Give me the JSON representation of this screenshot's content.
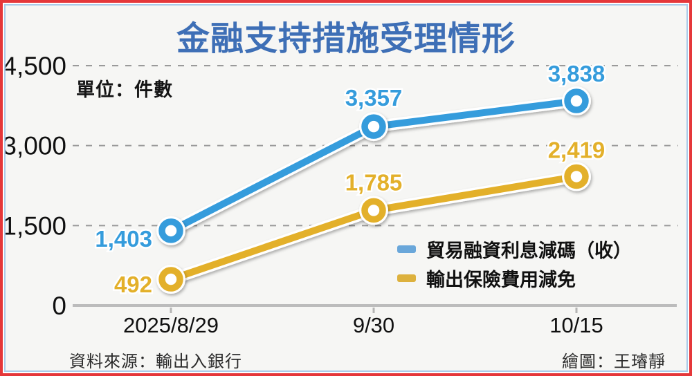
{
  "frame": {
    "border_color": "#e5373a",
    "inner_border_color": "#abcbe9",
    "background": "#f6f6f4"
  },
  "chart_data": {
    "type": "line",
    "title": "金融支持措施受理情形",
    "title_color": "#3e6fb6",
    "unit_label": "單位：件數",
    "categories": [
      "2025/8/29",
      "9/30",
      "10/15"
    ],
    "y_ticks": [
      {
        "value": 0,
        "label": "0"
      },
      {
        "value": 1500,
        "label": "1,500"
      },
      {
        "value": 3000,
        "label": "3,000"
      },
      {
        "value": 4500,
        "label": "4,500"
      }
    ],
    "ylim": [
      0,
      4500
    ],
    "grid": "horizontal dashed gridlines",
    "legend_position": "inside lower right",
    "series": [
      {
        "name": "貿易融資利息減碼（收）",
        "color": "#359cdc",
        "swatch_color": "#6aa7da",
        "values": [
          1403,
          3357,
          3838
        ],
        "value_labels": [
          "1,403",
          "3,357",
          "3,838"
        ]
      },
      {
        "name": "輸出保險費用減免",
        "color": "#e3b02a",
        "swatch_color": "#ddb13d",
        "values": [
          492,
          1785,
          2419
        ],
        "value_labels": [
          "492",
          "1,785",
          "2,419"
        ]
      }
    ],
    "source": "資料來源：輸出入銀行",
    "credit": "繪圖：王璿靜"
  }
}
